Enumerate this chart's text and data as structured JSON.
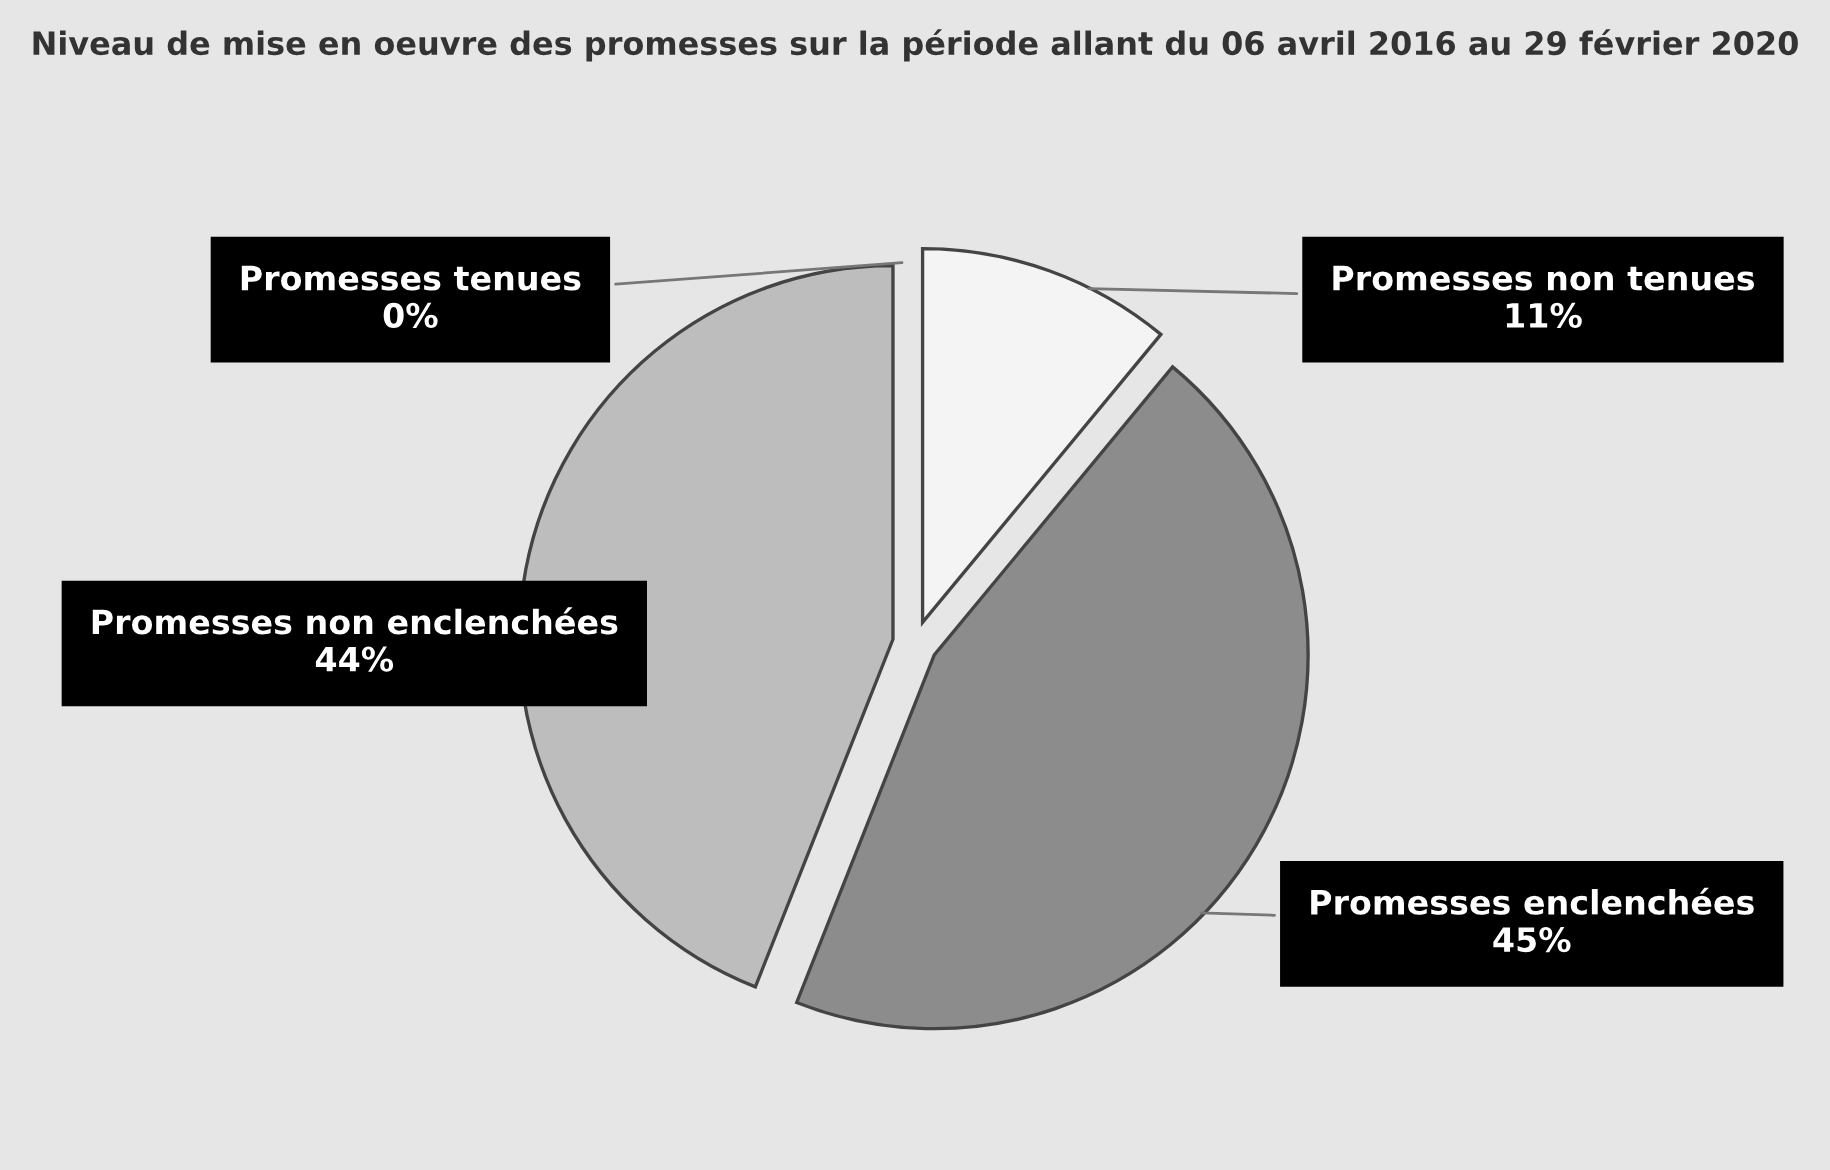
{
  "chart_data": {
    "type": "pie",
    "title": "Niveau de mise en oeuvre des promesses sur la période allant du 06 avril 2016 au 29 février 2020",
    "categories": [
      "Promesses tenues",
      "Promesses non tenues",
      "Promesses enclenchées",
      "Promesses non enclenchées"
    ],
    "values": [
      0,
      11,
      45,
      44
    ],
    "value_labels": [
      "0%",
      "11%",
      "45%",
      "44%"
    ],
    "colors": [
      "#ffffff",
      "#f4f4f4",
      "#8c8c8c",
      "#bdbdbd"
    ],
    "legend": false
  }
}
